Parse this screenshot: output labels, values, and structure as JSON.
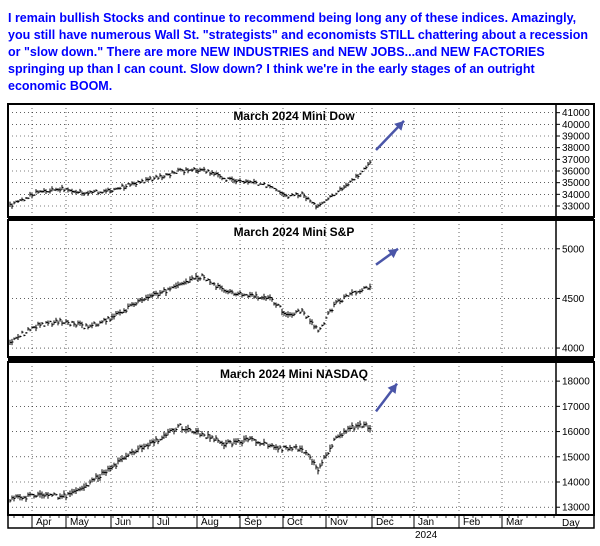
{
  "commentary": {
    "text": "I remain bullish Stocks and continue to recommend being long any of these indices. Amazingly, you still have numerous Wall St. \"strategists\" and economists STILL chattering about a recession or \"slow down.\" There are more NEW INDUSTRIES and NEW JOBS...and NEW FACTORIES springing up than I can count. Slow down? I think we're in the early stages of an outright economic BOOM.",
    "color": "#0000ff"
  },
  "colors": {
    "arrow": "#4a55a8",
    "bars": "#000000",
    "grid": "#000000",
    "frame": "#000000"
  },
  "chart_data": [
    {
      "type": "ohlc",
      "title": "March 2024 Mini Dow",
      "ylim": [
        32400,
        41400
      ],
      "yticks": [
        33000,
        34000,
        35000,
        36000,
        37000,
        38000,
        39000,
        40000,
        41000
      ],
      "grid": true,
      "x": [
        "Apr 3",
        "Apr 17",
        "May 1",
        "May 15",
        "Jun 1",
        "Jun 15",
        "Jul 1",
        "Jul 15",
        "Aug 1",
        "Aug 15",
        "Sep 1",
        "Sep 15",
        "Oct 1",
        "Oct 15",
        "Oct 27",
        "Nov 10",
        "Nov 24",
        "Dec 5"
      ],
      "close": [
        33000,
        34200,
        34500,
        34100,
        34400,
        35000,
        35500,
        36000,
        36100,
        35300,
        35000,
        34700,
        33800,
        34000,
        32900,
        34100,
        35300,
        36700
      ],
      "arrow": {
        "from": 37800,
        "to": 40300
      }
    },
    {
      "type": "ohlc",
      "title": "March 2024 Mini S&P",
      "ylim": [
        3950,
        5250
      ],
      "yticks": [
        4000,
        4500,
        5000
      ],
      "grid": true,
      "x": [
        "Apr 3",
        "Apr 17",
        "May 1",
        "May 15",
        "Jun 1",
        "Jun 15",
        "Jul 1",
        "Jul 15",
        "Aug 1",
        "Aug 15",
        "Sep 1",
        "Sep 15",
        "Oct 1",
        "Oct 15",
        "Oct 27",
        "Nov 10",
        "Nov 24",
        "Dec 5"
      ],
      "close": [
        4070,
        4230,
        4270,
        4210,
        4300,
        4470,
        4550,
        4650,
        4720,
        4560,
        4530,
        4490,
        4330,
        4380,
        4170,
        4460,
        4560,
        4610
      ],
      "arrow": {
        "from": 4840,
        "to": 5000
      }
    },
    {
      "type": "ohlc",
      "title": "March 2024 Mini NASDAQ",
      "ylim": [
        12850,
        18600
      ],
      "yticks": [
        13000,
        14000,
        15000,
        16000,
        17000,
        18000
      ],
      "grid": true,
      "x": [
        "Apr 3",
        "Apr 17",
        "May 1",
        "May 15",
        "Jun 1",
        "Jun 15",
        "Jul 1",
        "Jul 15",
        "Aug 1",
        "Aug 15",
        "Sep 1",
        "Sep 15",
        "Oct 1",
        "Oct 15",
        "Oct 27",
        "Nov 10",
        "Nov 24",
        "Dec 5"
      ],
      "close": [
        13300,
        13500,
        13400,
        13900,
        14600,
        15300,
        15700,
        16200,
        15900,
        15500,
        15700,
        15400,
        15300,
        15300,
        14500,
        15800,
        16200,
        16200
      ],
      "arrow": {
        "from": 16800,
        "to": 17900
      }
    }
  ],
  "x_axis": {
    "months": [
      "Apr",
      "May",
      "Jun",
      "Jul",
      "Aug",
      "Sep",
      "Oct",
      "Nov",
      "Dec",
      "Jan",
      "Feb",
      "Mar"
    ],
    "year_label": "2024",
    "unit_label": "Day"
  }
}
